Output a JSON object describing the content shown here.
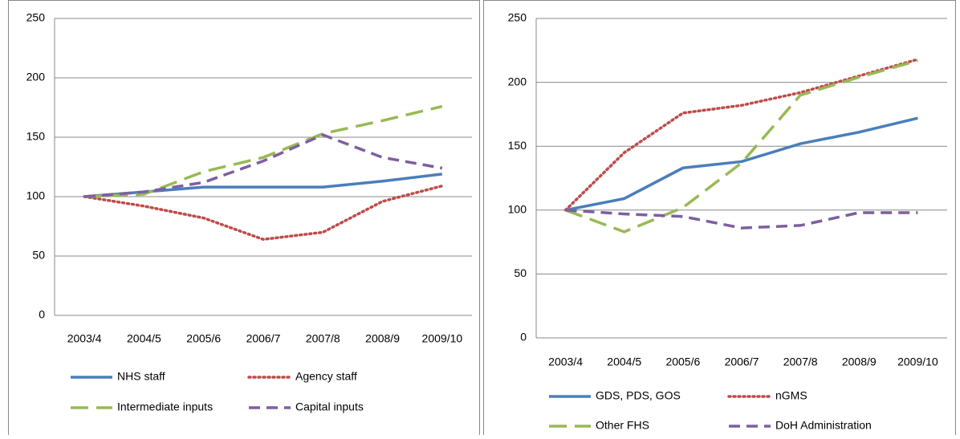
{
  "chart_data": [
    {
      "type": "line",
      "grid": true,
      "categories": [
        "2003/4",
        "2004/5",
        "2005/6",
        "2006/7",
        "2007/8",
        "2008/9",
        "2009/10"
      ],
      "ylim": [
        0,
        250
      ],
      "yticks": [
        0,
        50,
        100,
        150,
        200,
        250
      ],
      "series": [
        {
          "name": "NHS staff",
          "color": "#4a7ebb",
          "style": "solid",
          "values": [
            100,
            104,
            108,
            108,
            108,
            113,
            119
          ]
        },
        {
          "name": "Agency staff",
          "color": "#be4b48",
          "style": "dotted",
          "values": [
            100,
            92,
            82,
            64,
            70,
            96,
            109
          ]
        },
        {
          "name": "Intermediate inputs",
          "color": "#98b954",
          "style": "longdash",
          "values": [
            100,
            102,
            121,
            133,
            153,
            164,
            176
          ]
        },
        {
          "name": "Capital inputs",
          "color": "#7d5fa0",
          "style": "dash",
          "values": [
            100,
            104,
            112,
            130,
            152,
            133,
            124
          ]
        }
      ]
    },
    {
      "type": "line",
      "grid": true,
      "categories": [
        "2003/4",
        "2004/5",
        "2005/6",
        "2006/7",
        "2007/8",
        "2008/9",
        "2009/10"
      ],
      "ylim": [
        0,
        250
      ],
      "yticks": [
        0,
        50,
        100,
        150,
        200,
        250
      ],
      "series": [
        {
          "name": "GDS, PDS, GOS",
          "color": "#4a7ebb",
          "style": "solid",
          "values": [
            100,
            109,
            133,
            138,
            152,
            161,
            172
          ]
        },
        {
          "name": "nGMS",
          "color": "#be4b48",
          "style": "dotted",
          "values": [
            100,
            145,
            176,
            182,
            192,
            205,
            218
          ]
        },
        {
          "name": "Other FHS",
          "color": "#98b954",
          "style": "longdash",
          "values": [
            100,
            83,
            102,
            137,
            190,
            204,
            217
          ]
        },
        {
          "name": "DoH Administration",
          "color": "#7d5fa0",
          "style": "dash",
          "values": [
            100,
            97,
            95,
            86,
            88,
            98,
            98
          ]
        }
      ]
    }
  ]
}
